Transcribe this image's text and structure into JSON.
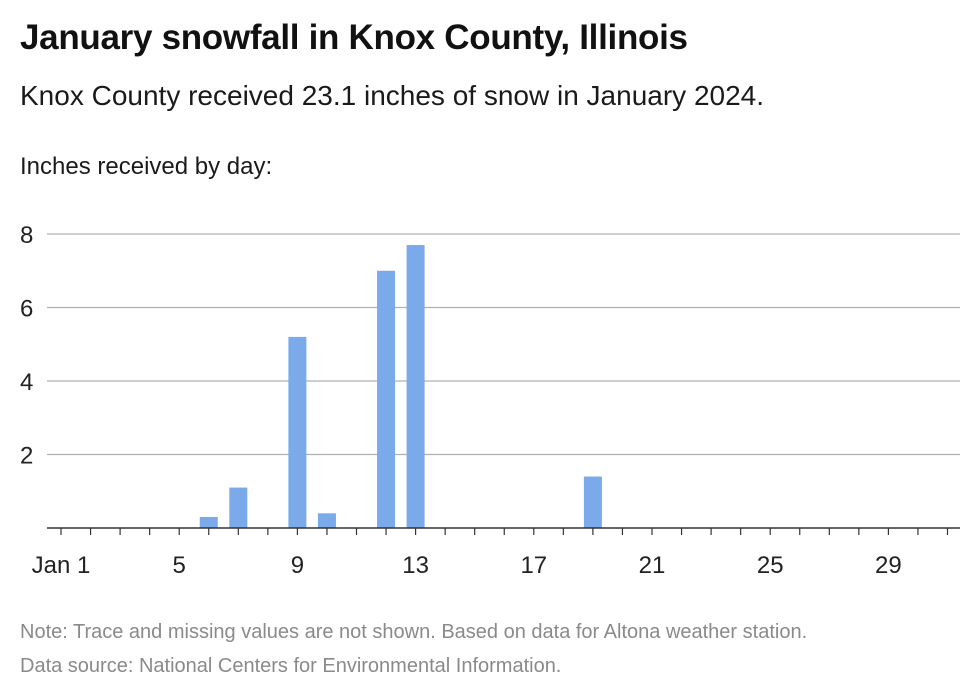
{
  "header": {
    "title": "January snowfall in Knox County, Illinois",
    "subtitle": "Knox County received 23.1 inches of snow in January 2024."
  },
  "footer": {
    "note": "Note: Trace and missing values are not shown. Based on data for Altona weather station.",
    "source": "Data source: National Centers for Environmental Information."
  },
  "colors": {
    "bar": "#7aaaea",
    "grid": "#b0b0b0",
    "axis": "#333333"
  },
  "chart_data": {
    "type": "bar",
    "title": "January snowfall in Knox County, Illinois",
    "ylabel": "Inches received by day:",
    "xlabel": "",
    "x_ticks": [
      "Jan 1",
      "5",
      "9",
      "13",
      "17",
      "21",
      "25",
      "29"
    ],
    "x_tick_days": [
      1,
      5,
      9,
      13,
      17,
      21,
      25,
      29
    ],
    "y_ticks": [
      2,
      4,
      6,
      8
    ],
    "ylim": [
      0,
      8
    ],
    "xlim": [
      1,
      31
    ],
    "grid": true,
    "days": [
      6,
      7,
      9,
      10,
      12,
      13,
      19
    ],
    "values": [
      0.3,
      1.1,
      5.2,
      0.4,
      7.0,
      7.7,
      1.4
    ]
  }
}
